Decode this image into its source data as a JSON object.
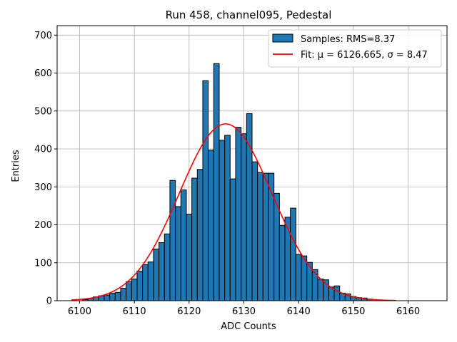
{
  "chart_data": {
    "type": "bar",
    "title": "Run 458, channel095, Pedestal",
    "xlabel": "ADC Counts",
    "ylabel": "Entries",
    "xlim": [
      6095.9,
      6167.1
    ],
    "ylim": [
      0,
      725
    ],
    "xticks": [
      6100,
      6110,
      6120,
      6130,
      6140,
      6150,
      6160
    ],
    "yticks": [
      0,
      100,
      200,
      300,
      400,
      500,
      600,
      700
    ],
    "grid": true,
    "legend_position": "top-right",
    "colors": {
      "bars": "#1f77b4",
      "fit": "#ff0000",
      "grid": "#b0b0b0"
    },
    "series": [
      {
        "name": "Samples: RMS=8.37",
        "kind": "histogram",
        "bin_width": 1,
        "x": [
          6101,
          6102,
          6103,
          6104,
          6105,
          6106,
          6107,
          6108,
          6109,
          6110,
          6111,
          6112,
          6113,
          6114,
          6115,
          6116,
          6117,
          6118,
          6119,
          6120,
          6121,
          6122,
          6123,
          6124,
          6125,
          6126,
          6127,
          6128,
          6129,
          6130,
          6131,
          6132,
          6133,
          6134,
          6135,
          6136,
          6137,
          6138,
          6139,
          6140,
          6141,
          6142,
          6143,
          6144,
          6145,
          6146,
          6147,
          6148,
          6149,
          6150,
          6151,
          6152,
          6153
        ],
        "values": [
          3,
          6,
          10,
          13,
          15,
          20,
          22,
          33,
          50,
          57,
          78,
          95,
          102,
          136,
          153,
          176,
          317,
          248,
          292,
          228,
          323,
          346,
          580,
          397,
          625,
          423,
          436,
          321,
          457,
          440,
          493,
          366,
          338,
          336,
          336,
          283,
          198,
          220,
          244,
          122,
          118,
          101,
          82,
          57,
          55,
          36,
          39,
          20,
          18,
          11,
          8,
          7,
          4
        ]
      },
      {
        "name": "Fit: μ = 6126.665, σ = 8.47",
        "kind": "gaussian",
        "mu": 6126.665,
        "sigma": 8.47,
        "amplitude": 466,
        "x_range": [
          6098.5,
          6157.8
        ]
      }
    ]
  }
}
